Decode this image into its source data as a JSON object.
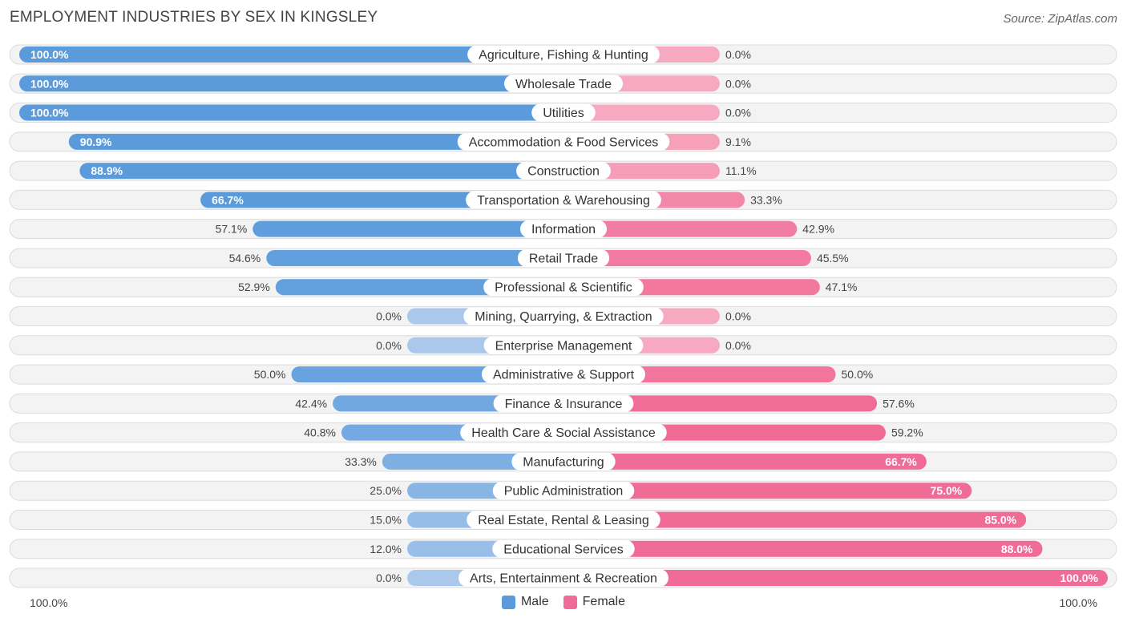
{
  "title": "EMPLOYMENT INDUSTRIES BY SEX IN KINGSLEY",
  "source": "Source: ZipAtlas.com",
  "axis": {
    "left_label": "100.0%",
    "right_label": "100.0%"
  },
  "legend": {
    "male": "Male",
    "female": "Female"
  },
  "colors": {
    "male_strong": "#5b9bdc",
    "male_light": "#a9c8ec",
    "female_strong": "#f06b96",
    "female_light": "#f7a9c1"
  },
  "chart_data": {
    "type": "bar",
    "orientation": "horizontal-diverging",
    "title": "EMPLOYMENT INDUSTRIES BY SEX IN KINGSLEY",
    "xlim": [
      -100,
      100
    ],
    "categories": [
      "Agriculture, Fishing & Hunting",
      "Wholesale Trade",
      "Utilities",
      "Accommodation & Food Services",
      "Construction",
      "Transportation & Warehousing",
      "Information",
      "Retail Trade",
      "Professional & Scientific",
      "Mining, Quarrying, & Extraction",
      "Enterprise Management",
      "Administrative & Support",
      "Finance & Insurance",
      "Health Care & Social Assistance",
      "Manufacturing",
      "Public Administration",
      "Real Estate, Rental & Leasing",
      "Educational Services",
      "Arts, Entertainment & Recreation"
    ],
    "series": [
      {
        "name": "Male",
        "values": [
          100.0,
          100.0,
          100.0,
          90.9,
          88.9,
          66.7,
          57.1,
          54.6,
          52.9,
          0.0,
          0.0,
          50.0,
          42.4,
          40.8,
          33.3,
          25.0,
          15.0,
          12.0,
          0.0
        ],
        "labels": [
          "100.0%",
          "100.0%",
          "100.0%",
          "90.9%",
          "88.9%",
          "66.7%",
          "57.1%",
          "54.6%",
          "52.9%",
          "0.0%",
          "0.0%",
          "50.0%",
          "42.4%",
          "40.8%",
          "33.3%",
          "25.0%",
          "15.0%",
          "12.0%",
          "0.0%"
        ]
      },
      {
        "name": "Female",
        "values": [
          0.0,
          0.0,
          0.0,
          9.1,
          11.1,
          33.3,
          42.9,
          45.5,
          47.1,
          0.0,
          0.0,
          50.0,
          57.6,
          59.2,
          66.7,
          75.0,
          85.0,
          88.0,
          100.0
        ],
        "labels": [
          "0.0%",
          "0.0%",
          "0.0%",
          "9.1%",
          "11.1%",
          "33.3%",
          "42.9%",
          "45.5%",
          "47.1%",
          "0.0%",
          "0.0%",
          "50.0%",
          "57.6%",
          "59.2%",
          "66.7%",
          "75.0%",
          "85.0%",
          "88.0%",
          "100.0%"
        ]
      }
    ]
  }
}
